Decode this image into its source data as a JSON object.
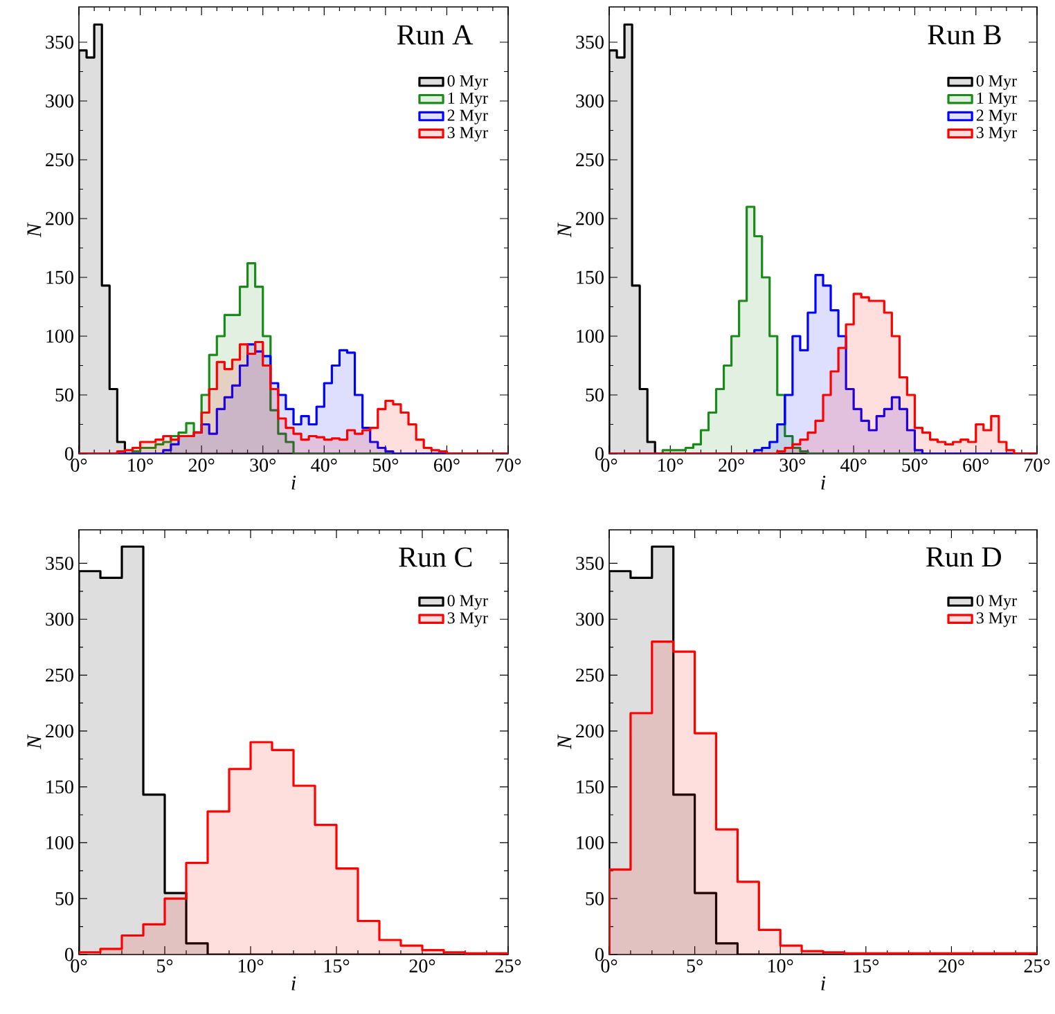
{
  "chart_data": [
    {
      "type": "histogram",
      "title": "Run A",
      "xlabel": "i",
      "ylabel": "N",
      "legend": "top right",
      "xlim": [
        0,
        70
      ],
      "ylim": [
        0,
        380
      ],
      "xticks": [
        {
          "value": 0,
          "label": "0°"
        },
        {
          "value": 10,
          "label": "10°"
        },
        {
          "value": 20,
          "label": "20°"
        },
        {
          "value": 30,
          "label": "30°"
        },
        {
          "value": 40,
          "label": "40°"
        },
        {
          "value": 50,
          "label": "50°"
        },
        {
          "value": 60,
          "label": "60°"
        },
        {
          "value": 70,
          "label": "70°"
        }
      ],
      "yticks": [
        0,
        50,
        100,
        150,
        200,
        250,
        300,
        350
      ],
      "bins": [
        0,
        1.25,
        2.5,
        3.75,
        5,
        6.25,
        7.5,
        8.75,
        10,
        11.25,
        12.5,
        13.75,
        15,
        16.25,
        17.5,
        18.75,
        20,
        21.25,
        22.5,
        23.75,
        25,
        26.25,
        27.5,
        28.75,
        30,
        31.25,
        32.5,
        33.75,
        35,
        36.25,
        37.5,
        38.75,
        40,
        41.25,
        42.5,
        43.75,
        45,
        46.25,
        47.5,
        48.75,
        50,
        51.25,
        52.5,
        53.75,
        55,
        56.25,
        57.5,
        58.75,
        60,
        61.25,
        62.5,
        63.75,
        65,
        66.25,
        67.5,
        68.75,
        70
      ],
      "series": [
        {
          "name": "0 Myr",
          "color": "#000000",
          "values": [
            343,
            337,
            365,
            143,
            55,
            10,
            0,
            0,
            0,
            0,
            0,
            0,
            0,
            0,
            0,
            0,
            0,
            0,
            0,
            0,
            0,
            0,
            0,
            0,
            0,
            0,
            0,
            0,
            0,
            0,
            0,
            0,
            0,
            0,
            0,
            0,
            0,
            0,
            0,
            0,
            0,
            0,
            0,
            0,
            0,
            0,
            0,
            0,
            0,
            0,
            0,
            0,
            0,
            0,
            0,
            0
          ]
        },
        {
          "name": "1 Myr",
          "color": "#1a8a1a",
          "values": [
            0,
            0,
            0,
            0,
            0,
            0,
            0,
            2,
            5,
            5,
            8,
            10,
            15,
            18,
            26,
            18,
            50,
            84,
            100,
            118,
            118,
            142,
            162,
            142,
            100,
            37,
            17,
            10,
            0,
            0,
            0,
            0,
            0,
            0,
            0,
            0,
            0,
            0,
            0,
            0,
            0,
            0,
            0,
            0,
            0,
            0,
            0,
            0,
            0,
            0,
            0,
            0,
            0,
            0,
            0,
            0
          ]
        },
        {
          "name": "2 Myr",
          "color": "#0000ff",
          "values": [
            0,
            0,
            0,
            0,
            0,
            0,
            0,
            0,
            0,
            0,
            0,
            3,
            8,
            15,
            15,
            18,
            25,
            17,
            38,
            48,
            58,
            75,
            93,
            87,
            83,
            60,
            50,
            38,
            25,
            32,
            25,
            40,
            60,
            75,
            88,
            86,
            50,
            22,
            10,
            5,
            2,
            0,
            0,
            0,
            0,
            0,
            0,
            0,
            0,
            0,
            0,
            0,
            0,
            0,
            0,
            0
          ]
        },
        {
          "name": "3 Myr",
          "color": "#ff0000",
          "values": [
            0,
            0,
            0,
            0,
            0,
            2,
            3,
            5,
            10,
            10,
            12,
            15,
            12,
            15,
            15,
            18,
            35,
            55,
            78,
            72,
            80,
            93,
            85,
            95,
            75,
            55,
            30,
            22,
            17,
            12,
            15,
            14,
            12,
            13,
            12,
            20,
            17,
            20,
            22,
            38,
            45,
            42,
            35,
            25,
            12,
            5,
            3,
            2,
            0,
            0,
            0,
            0,
            0,
            0,
            0,
            0
          ]
        }
      ]
    },
    {
      "type": "histogram",
      "title": "Run B",
      "xlabel": "i",
      "ylabel": "N",
      "legend": "top right",
      "xlim": [
        0,
        70
      ],
      "ylim": [
        0,
        380
      ],
      "xticks": [
        {
          "value": 0,
          "label": "0°"
        },
        {
          "value": 10,
          "label": "10°"
        },
        {
          "value": 20,
          "label": "20°"
        },
        {
          "value": 30,
          "label": "30°"
        },
        {
          "value": 40,
          "label": "40°"
        },
        {
          "value": 50,
          "label": "50°"
        },
        {
          "value": 60,
          "label": "60°"
        },
        {
          "value": 70,
          "label": "70°"
        }
      ],
      "yticks": [
        0,
        50,
        100,
        150,
        200,
        250,
        300,
        350
      ],
      "bins": [
        0,
        1.25,
        2.5,
        3.75,
        5,
        6.25,
        7.5,
        8.75,
        10,
        11.25,
        12.5,
        13.75,
        15,
        16.25,
        17.5,
        18.75,
        20,
        21.25,
        22.5,
        23.75,
        25,
        26.25,
        27.5,
        28.75,
        30,
        31.25,
        32.5,
        33.75,
        35,
        36.25,
        37.5,
        38.75,
        40,
        41.25,
        42.5,
        43.75,
        45,
        46.25,
        47.5,
        48.75,
        50,
        51.25,
        52.5,
        53.75,
        55,
        56.25,
        57.5,
        58.75,
        60,
        61.25,
        62.5,
        63.75,
        65,
        66.25,
        67.5,
        68.75,
        70
      ],
      "series": [
        {
          "name": "0 Myr",
          "color": "#000000",
          "values": [
            343,
            337,
            365,
            143,
            55,
            10,
            0,
            0,
            0,
            0,
            0,
            0,
            0,
            0,
            0,
            0,
            0,
            0,
            0,
            0,
            0,
            0,
            0,
            0,
            0,
            0,
            0,
            0,
            0,
            0,
            0,
            0,
            0,
            0,
            0,
            0,
            0,
            0,
            0,
            0,
            0,
            0,
            0,
            0,
            0,
            0,
            0,
            0,
            0,
            0,
            0,
            0,
            0,
            0,
            0,
            0
          ]
        },
        {
          "name": "1 Myr",
          "color": "#1a8a1a",
          "values": [
            0,
            0,
            0,
            0,
            0,
            0,
            0,
            3,
            3,
            3,
            5,
            8,
            20,
            35,
            55,
            75,
            100,
            130,
            210,
            185,
            150,
            100,
            50,
            15,
            5,
            2,
            0,
            0,
            0,
            0,
            0,
            0,
            0,
            0,
            0,
            0,
            0,
            0,
            0,
            0,
            0,
            0,
            0,
            0,
            0,
            0,
            0,
            0,
            0,
            0,
            0,
            0,
            0,
            0,
            0,
            0
          ]
        },
        {
          "name": "2 Myr",
          "color": "#0000ff",
          "values": [
            0,
            0,
            0,
            0,
            0,
            0,
            0,
            0,
            0,
            0,
            0,
            0,
            0,
            0,
            0,
            0,
            0,
            0,
            0,
            3,
            5,
            10,
            25,
            50,
            100,
            88,
            120,
            152,
            143,
            122,
            100,
            55,
            38,
            28,
            20,
            32,
            38,
            48,
            38,
            20,
            3,
            0,
            0,
            0,
            0,
            0,
            0,
            0,
            0,
            0,
            0,
            0,
            0,
            0,
            0,
            0
          ]
        },
        {
          "name": "3 Myr",
          "color": "#ff0000",
          "values": [
            0,
            0,
            0,
            0,
            0,
            0,
            0,
            0,
            0,
            0,
            0,
            0,
            0,
            0,
            0,
            0,
            0,
            0,
            0,
            0,
            0,
            0,
            2,
            5,
            8,
            12,
            18,
            28,
            50,
            70,
            90,
            110,
            136,
            133,
            130,
            130,
            120,
            100,
            65,
            50,
            22,
            18,
            12,
            10,
            8,
            10,
            12,
            10,
            25,
            20,
            32,
            10,
            3,
            0,
            0,
            0
          ]
        }
      ]
    },
    {
      "type": "histogram",
      "title": "Run C",
      "xlabel": "i",
      "ylabel": "N",
      "legend": "top right",
      "xlim": [
        0,
        25
      ],
      "ylim": [
        0,
        380
      ],
      "xticks": [
        {
          "value": 0,
          "label": "0°"
        },
        {
          "value": 5,
          "label": "5°"
        },
        {
          "value": 10,
          "label": "10°"
        },
        {
          "value": 15,
          "label": "15°"
        },
        {
          "value": 20,
          "label": "20°"
        },
        {
          "value": 25,
          "label": "25°"
        }
      ],
      "yticks": [
        0,
        50,
        100,
        150,
        200,
        250,
        300,
        350
      ],
      "bins": [
        0,
        1.25,
        2.5,
        3.75,
        5,
        6.25,
        7.5,
        8.75,
        10,
        11.25,
        12.5,
        13.75,
        15,
        16.25,
        17.5,
        18.75,
        20,
        21.25,
        22.5,
        23.75,
        25
      ],
      "series": [
        {
          "name": "0 Myr",
          "color": "#000000",
          "values": [
            343,
            337,
            365,
            143,
            55,
            10,
            0,
            0,
            0,
            0,
            0,
            0,
            0,
            0,
            0,
            0,
            0,
            0,
            0,
            0
          ]
        },
        {
          "name": "3 Myr",
          "color": "#ff0000",
          "values": [
            2,
            5,
            17,
            27,
            50,
            82,
            128,
            166,
            190,
            183,
            151,
            116,
            77,
            30,
            13,
            8,
            4,
            2,
            1,
            1
          ]
        }
      ]
    },
    {
      "type": "histogram",
      "title": "Run D",
      "xlabel": "i",
      "ylabel": "N",
      "legend": "top right",
      "xlim": [
        0,
        25
      ],
      "ylim": [
        0,
        380
      ],
      "xticks": [
        {
          "value": 0,
          "label": "0°"
        },
        {
          "value": 5,
          "label": "5°"
        },
        {
          "value": 10,
          "label": "10°"
        },
        {
          "value": 15,
          "label": "15°"
        },
        {
          "value": 20,
          "label": "20°"
        },
        {
          "value": 25,
          "label": "25°"
        }
      ],
      "yticks": [
        0,
        50,
        100,
        150,
        200,
        250,
        300,
        350
      ],
      "bins": [
        0,
        1.25,
        2.5,
        3.75,
        5,
        6.25,
        7.5,
        8.75,
        10,
        11.25,
        12.5,
        13.75,
        15,
        16.25,
        17.5,
        18.75,
        20,
        21.25,
        22.5,
        23.75,
        25
      ],
      "series": [
        {
          "name": "0 Myr",
          "color": "#000000",
          "values": [
            343,
            337,
            365,
            143,
            55,
            10,
            0,
            0,
            0,
            0,
            0,
            0,
            0,
            0,
            0,
            0,
            0,
            0,
            0,
            0
          ]
        },
        {
          "name": "3 Myr",
          "color": "#ff0000",
          "values": [
            76,
            216,
            280,
            271,
            198,
            112,
            65,
            22,
            8,
            3,
            2,
            1,
            1,
            1,
            1,
            1,
            1,
            1,
            1,
            1
          ]
        }
      ]
    }
  ]
}
